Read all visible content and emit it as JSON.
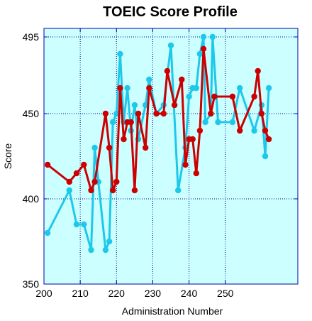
{
  "chart_data": {
    "type": "line",
    "title": "TOEIC Score Profile",
    "xlabel": "Administration Number",
    "ylabel": "Score",
    "xlim": [
      200,
      270
    ],
    "ylim": [
      350,
      500
    ],
    "x_ticks": [
      200,
      210,
      220,
      230,
      240,
      250
    ],
    "y_ticks": [
      350,
      400,
      450,
      495
    ],
    "grid": true,
    "legend": "none",
    "background_color": "#ccffff",
    "frame_color": "#0000aa",
    "grid_color": "#000080",
    "series": [
      {
        "color": "#1ec8ea",
        "points": [
          [
            201,
            380
          ],
          [
            207,
            405
          ],
          [
            209,
            385
          ],
          [
            211,
            385
          ],
          [
            213,
            370
          ],
          [
            214,
            430
          ],
          [
            215,
            410
          ],
          [
            217,
            370
          ],
          [
            218,
            375
          ],
          [
            219,
            445
          ],
          [
            220,
            450
          ],
          [
            221,
            485
          ],
          [
            222,
            445
          ],
          [
            223,
            465
          ],
          [
            224,
            440
          ],
          [
            225,
            455
          ],
          [
            226,
            435
          ],
          [
            228,
            455
          ],
          [
            229,
            470
          ],
          [
            231,
            450
          ],
          [
            233,
            455
          ],
          [
            235,
            490
          ],
          [
            237,
            405
          ],
          [
            239,
            430
          ],
          [
            240,
            460
          ],
          [
            241,
            465
          ],
          [
            242,
            465
          ],
          [
            243,
            485
          ],
          [
            244,
            495
          ],
          [
            244.5,
            445
          ],
          [
            246,
            450
          ],
          [
            246.5,
            495
          ],
          [
            248,
            445
          ],
          [
            252,
            445
          ],
          [
            254,
            465
          ],
          [
            258,
            440
          ],
          [
            260,
            455
          ],
          [
            261,
            425
          ],
          [
            262,
            465
          ]
        ]
      },
      {
        "color": "#cc0000",
        "points": [
          [
            201,
            420
          ],
          [
            207,
            410
          ],
          [
            209,
            415
          ],
          [
            211,
            420
          ],
          [
            213,
            405
          ],
          [
            214,
            410
          ],
          [
            217,
            450
          ],
          [
            218,
            430
          ],
          [
            219,
            405
          ],
          [
            220,
            410
          ],
          [
            221,
            465
          ],
          [
            222,
            435
          ],
          [
            223,
            445
          ],
          [
            224,
            445
          ],
          [
            225,
            405
          ],
          [
            226,
            450
          ],
          [
            228,
            430
          ],
          [
            229,
            465
          ],
          [
            231,
            450
          ],
          [
            233,
            450
          ],
          [
            234,
            475
          ],
          [
            236,
            455
          ],
          [
            238,
            470
          ],
          [
            239,
            420
          ],
          [
            240,
            435
          ],
          [
            241,
            435
          ],
          [
            242,
            415
          ],
          [
            243,
            440
          ],
          [
            244,
            488
          ],
          [
            246,
            450
          ],
          [
            247,
            460
          ],
          [
            252,
            460
          ],
          [
            254,
            440
          ],
          [
            258,
            460
          ],
          [
            259,
            475
          ],
          [
            260,
            450
          ],
          [
            261,
            440
          ],
          [
            262,
            435
          ]
        ]
      }
    ]
  }
}
